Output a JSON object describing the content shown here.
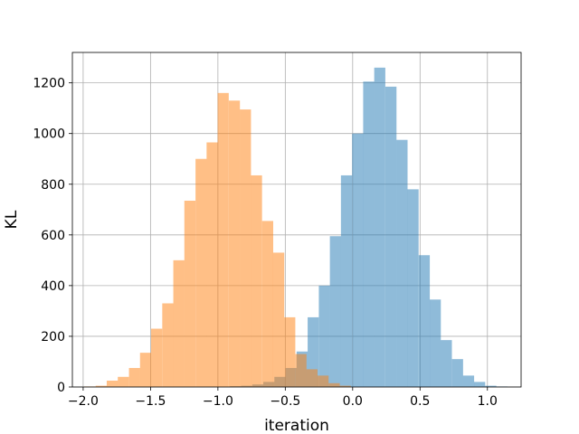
{
  "chart_data": {
    "type": "bar",
    "subtype": "histogram",
    "xlabel": "iteration",
    "ylabel": "KL",
    "xlim": [
      -2.08,
      1.25
    ],
    "ylim": [
      0,
      1320
    ],
    "xticks": [
      -2.0,
      -1.5,
      -1.0,
      -0.5,
      0.0,
      0.5,
      1.0
    ],
    "xtick_labels": [
      "−2.0",
      "−1.5",
      "−1.0",
      "−0.5",
      "0.0",
      "0.5",
      "1.0"
    ],
    "yticks": [
      0,
      200,
      400,
      600,
      800,
      1000,
      1200
    ],
    "ytick_labels": [
      "0",
      "200",
      "400",
      "600",
      "800",
      "1000",
      "1200"
    ],
    "grid": true,
    "bin_width": 0.0824,
    "series": [
      {
        "color": "#1f77b4",
        "alpha": 0.5,
        "bins_start": [
          -0.91,
          -0.828,
          -0.745,
          -0.663,
          -0.581,
          -0.498,
          -0.416,
          -0.334,
          -0.251,
          -0.169,
          -0.087,
          -0.004,
          0.078,
          0.16,
          0.243,
          0.325,
          0.407,
          0.49,
          0.572,
          0.654,
          0.737,
          0.819,
          0.901,
          0.984,
          1.066
        ],
        "values": [
          3,
          5,
          10,
          20,
          40,
          75,
          140,
          275,
          400,
          595,
          835,
          1000,
          1205,
          1260,
          1185,
          975,
          780,
          520,
          345,
          185,
          110,
          45,
          20,
          5,
          2
        ]
      },
      {
        "color": "#ff7f0e",
        "alpha": 0.5,
        "bins_start": [
          -1.99,
          -1.907,
          -1.825,
          -1.743,
          -1.66,
          -1.578,
          -1.496,
          -1.413,
          -1.331,
          -1.249,
          -1.166,
          -1.084,
          -1.002,
          -0.919,
          -0.837,
          -0.755,
          -0.672,
          -0.59,
          -0.508,
          -0.425,
          -0.343,
          -0.261,
          -0.178,
          -0.096
        ],
        "values": [
          2,
          5,
          25,
          40,
          75,
          135,
          230,
          330,
          500,
          735,
          900,
          965,
          1160,
          1130,
          1095,
          835,
          655,
          530,
          275,
          130,
          70,
          45,
          15,
          5
        ]
      }
    ]
  }
}
